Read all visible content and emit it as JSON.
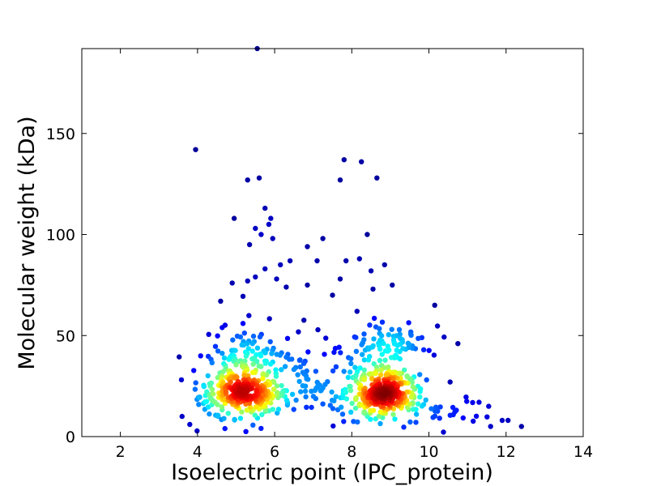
{
  "chart_data": {
    "type": "scatter",
    "title": "",
    "xlabel": "Isoelectric point (IPC_protein)",
    "ylabel": "Molecular weight (kDa)",
    "xlim": [
      1,
      14
    ],
    "ylim": [
      0,
      192
    ],
    "xticks": [
      2,
      4,
      6,
      8,
      10,
      12,
      14
    ],
    "yticks": [
      0,
      50,
      100,
      150
    ],
    "xtick_labels": [
      "2",
      "4",
      "6",
      "8",
      "10",
      "12",
      "14"
    ],
    "ytick_labels": [
      "0",
      "50",
      "100",
      "150"
    ],
    "grid": false,
    "legend": "none",
    "colormap": "jet (point density)",
    "colors": {
      "low_density": "#00008f",
      "high_density": "#7f0000"
    },
    "point_count": 980,
    "clusters": [
      {
        "center_x": 5.1,
        "center_y": 19,
        "note": "acidic density peak"
      },
      {
        "center_x": 8.7,
        "center_y": 19,
        "note": "basic density peak"
      }
    ],
    "points": [
      {
        "x": 3.95,
        "y": 142
      },
      {
        "x": 5.55,
        "y": 192
      },
      {
        "x": 5.6,
        "y": 128
      },
      {
        "x": 5.3,
        "y": 127
      },
      {
        "x": 5.75,
        "y": 113
      },
      {
        "x": 4.95,
        "y": 108
      },
      {
        "x": 5.9,
        "y": 108
      },
      {
        "x": 5.85,
        "y": 105
      },
      {
        "x": 5.5,
        "y": 103
      },
      {
        "x": 5.65,
        "y": 100
      },
      {
        "x": 5.35,
        "y": 95
      },
      {
        "x": 5.95,
        "y": 98
      },
      {
        "x": 6.85,
        "y": 94
      },
      {
        "x": 7.25,
        "y": 98
      },
      {
        "x": 7.8,
        "y": 137
      },
      {
        "x": 8.25,
        "y": 136
      },
      {
        "x": 8.65,
        "y": 128
      },
      {
        "x": 7.7,
        "y": 127
      },
      {
        "x": 8.4,
        "y": 100
      },
      {
        "x": 7.1,
        "y": 87
      },
      {
        "x": 8.2,
        "y": 88
      },
      {
        "x": 7.85,
        "y": 87
      },
      {
        "x": 8.85,
        "y": 85
      },
      {
        "x": 6.15,
        "y": 85
      },
      {
        "x": 6.4,
        "y": 87
      },
      {
        "x": 5.75,
        "y": 83
      },
      {
        "x": 4.6,
        "y": 67
      },
      {
        "x": 4.9,
        "y": 76
      },
      {
        "x": 5.3,
        "y": 77
      },
      {
        "x": 5.5,
        "y": 79
      },
      {
        "x": 6.05,
        "y": 78
      },
      {
        "x": 6.3,
        "y": 74
      },
      {
        "x": 6.85,
        "y": 75
      },
      {
        "x": 7.5,
        "y": 70
      },
      {
        "x": 7.7,
        "y": 78
      },
      {
        "x": 8.5,
        "y": 82
      },
      {
        "x": 8.55,
        "y": 73
      },
      {
        "x": 9.05,
        "y": 75
      },
      {
        "x": 10.15,
        "y": 65
      },
      {
        "x": 10.75,
        "y": 46
      },
      {
        "x": 10.55,
        "y": 27
      },
      {
        "x": 11.3,
        "y": 17
      },
      {
        "x": 11.55,
        "y": 15
      },
      {
        "x": 12.4,
        "y": 5
      },
      {
        "x": 11.9,
        "y": 8
      },
      {
        "x": 12.05,
        "y": 8
      },
      {
        "x": 11.6,
        "y": 5
      },
      {
        "x": 3.6,
        "y": 10
      },
      {
        "x": 3.8,
        "y": 6
      }
    ],
    "density_model": {
      "clusters": [
        {
          "mx": 5.15,
          "my": 19,
          "sx": 0.55,
          "sy": 9,
          "n": 330
        },
        {
          "mx": 8.75,
          "my": 19,
          "sx": 0.5,
          "sy": 9,
          "n": 330
        },
        {
          "mx": 5.5,
          "my": 38,
          "sx": 0.7,
          "sy": 10,
          "n": 90
        },
        {
          "mx": 8.9,
          "my": 42,
          "sx": 0.55,
          "sy": 10,
          "n": 90
        },
        {
          "mx": 7.0,
          "my": 22,
          "sx": 0.6,
          "sy": 12,
          "n": 60
        },
        {
          "mx": 10.2,
          "my": 10,
          "sx": 0.5,
          "sy": 5,
          "n": 30
        }
      ],
      "seed": 12345
    }
  }
}
